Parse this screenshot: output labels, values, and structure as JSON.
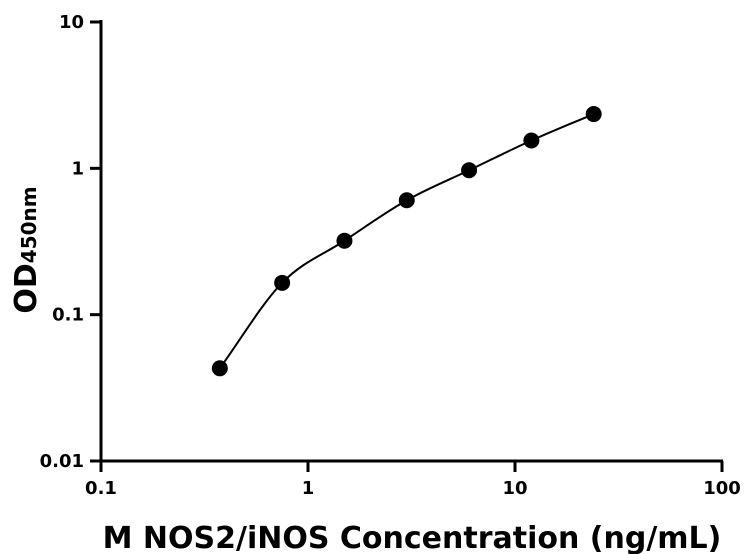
{
  "chart_data": {
    "type": "scatter",
    "xscale": "log",
    "yscale": "log",
    "xlim": [
      0.1,
      100
    ],
    "ylim": [
      0.01,
      10
    ],
    "x_ticks": [
      "0.1",
      "1",
      "10",
      "100"
    ],
    "y_ticks": [
      "0.01",
      "0.1",
      "1",
      "10"
    ],
    "xlabel": "M NOS2/iNOS Concentration (ng/mL)",
    "ylabel": "OD",
    "ylabel_sub": "450nm",
    "grid": false,
    "series": [
      {
        "x": [
          0.375,
          0.75,
          1.5,
          3,
          6,
          12,
          24
        ],
        "y": [
          0.043,
          0.165,
          0.32,
          0.605,
          0.97,
          1.55,
          2.35
        ]
      }
    ],
    "fit_line": true
  }
}
